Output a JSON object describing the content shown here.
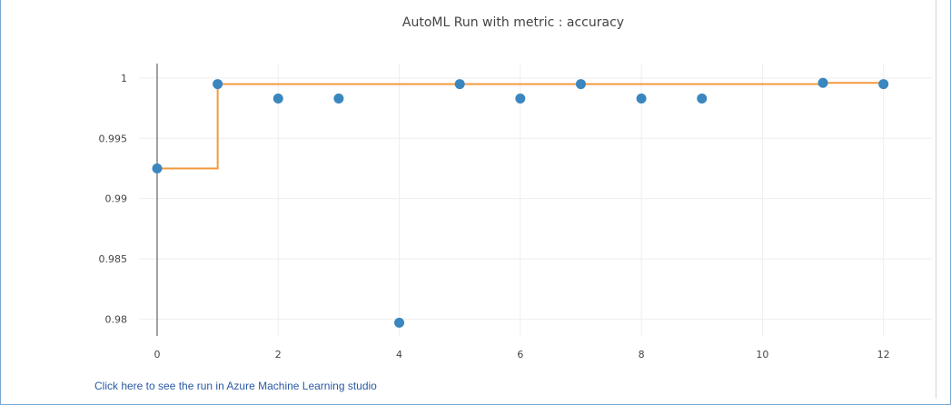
{
  "chart_data": {
    "type": "scatter",
    "title": "AutoML Run with metric : accuracy",
    "xlabel": "",
    "ylabel": "",
    "xlim": [
      -0.3,
      12.8
    ],
    "ylim": [
      0.9786,
      1.0012
    ],
    "x_ticks": [
      0,
      2,
      4,
      6,
      8,
      10,
      12
    ],
    "x_tick_labels": [
      "0",
      "2",
      "4",
      "6",
      "8",
      "10",
      "12"
    ],
    "y_ticks": [
      0.98,
      0.985,
      0.99,
      0.995,
      1
    ],
    "y_tick_labels": [
      "0.98",
      "0.985",
      "0.99",
      "0.995",
      "1"
    ],
    "grid": true,
    "series": [
      {
        "type": "scatter",
        "color": "#3a86bf",
        "x": [
          0,
          1,
          2,
          3,
          4,
          5,
          6,
          7,
          8,
          9,
          11,
          12
        ],
        "y": [
          0.9925,
          0.9995,
          0.9983,
          0.9983,
          0.9797,
          0.9995,
          0.9983,
          0.9995,
          0.9983,
          0.9983,
          0.9996,
          0.9995
        ]
      },
      {
        "type": "step-line",
        "color": "#f39a3d",
        "x": [
          0,
          1,
          1,
          11,
          11,
          12
        ],
        "y": [
          0.9925,
          0.9925,
          0.9995,
          0.9995,
          0.9996,
          0.9996
        ]
      }
    ]
  },
  "footer": {
    "link_text": "Click here to see the run in Azure Machine Learning studio"
  }
}
